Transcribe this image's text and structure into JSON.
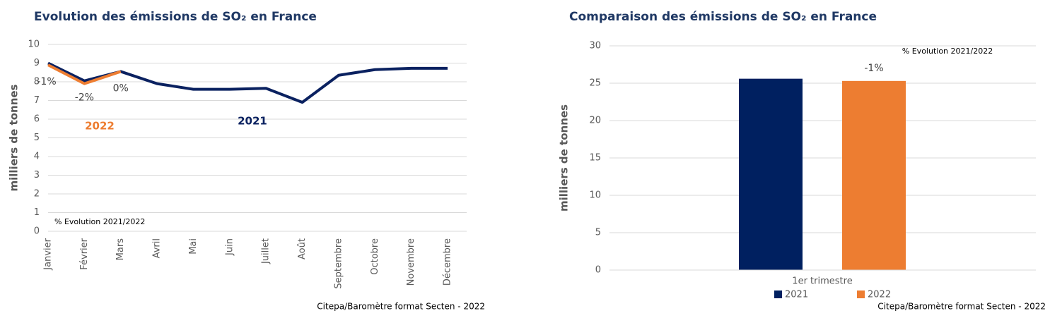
{
  "chart_data": [
    {
      "type": "line",
      "title": "Evolution des émissions de SO₂ en France",
      "y_label": "milliers de tonnes",
      "categories": [
        "Janvier",
        "Février",
        "Mars",
        "Avril",
        "Mai",
        "Juin",
        "Juillet",
        "Août",
        "Septembre",
        "Octobre",
        "Novembre",
        "Décembre"
      ],
      "series": [
        {
          "name": "2021",
          "color": "#0a2160",
          "values": [
            9.0,
            8.05,
            8.55,
            7.9,
            7.6,
            7.6,
            7.65,
            6.9,
            8.35,
            8.65,
            8.72,
            8.72
          ]
        },
        {
          "name": "2022",
          "color": "#ed7d31",
          "values": [
            8.9,
            7.9,
            8.55,
            null,
            null,
            null,
            null,
            null,
            null,
            null,
            null,
            null
          ]
        }
      ],
      "annotations": [
        "-1%",
        "-2%",
        "0%"
      ],
      "note": "% Evolution 2021/2022",
      "source": "Citepa/Baromètre format Secten - 2022",
      "ylim": [
        0,
        10
      ],
      "yticks": [
        0,
        1,
        2,
        3,
        4,
        5,
        6,
        7,
        8,
        9,
        10
      ],
      "grid": true
    },
    {
      "type": "bar",
      "title": "Comparaison des émissions de SO₂ en France",
      "y_label": "milliers de tonnes",
      "categories": [
        "1er trimestre"
      ],
      "series": [
        {
          "name": "2021",
          "color": "#002060",
          "values": [
            25.6
          ]
        },
        {
          "name": "2022",
          "color": "#ed7d31",
          "values": [
            25.3
          ]
        }
      ],
      "annotations": [
        "-1%"
      ],
      "note": "% Evolution 2021/2022",
      "source": "Citepa/Baromètre format Secten - 2022",
      "ylim": [
        0,
        30
      ],
      "yticks": [
        0,
        5,
        10,
        15,
        20,
        25,
        30
      ],
      "grid": true,
      "legend": "bottom"
    }
  ]
}
